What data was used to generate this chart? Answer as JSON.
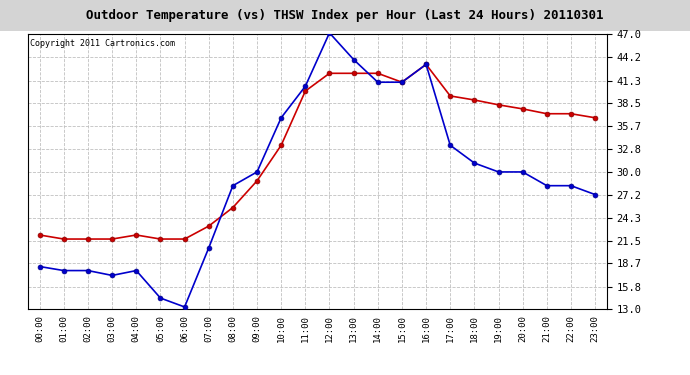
{
  "title": "Outdoor Temperature (vs) THSW Index per Hour (Last 24 Hours) 20110301",
  "copyright": "Copyright 2011 Cartronics.com",
  "hours": [
    "00:00",
    "01:00",
    "02:00",
    "03:00",
    "04:00",
    "05:00",
    "06:00",
    "07:00",
    "08:00",
    "09:00",
    "10:00",
    "11:00",
    "12:00",
    "13:00",
    "14:00",
    "15:00",
    "16:00",
    "17:00",
    "18:00",
    "19:00",
    "20:00",
    "21:00",
    "22:00",
    "23:00"
  ],
  "temp_red": [
    22.2,
    21.7,
    21.7,
    21.7,
    22.2,
    21.7,
    21.7,
    23.3,
    25.6,
    28.9,
    33.3,
    40.0,
    42.2,
    42.2,
    42.2,
    41.1,
    43.3,
    39.4,
    38.9,
    38.3,
    37.8,
    37.2,
    37.2,
    36.7
  ],
  "thsw_blue": [
    18.3,
    17.8,
    17.8,
    17.2,
    17.8,
    14.4,
    13.3,
    20.6,
    28.3,
    30.0,
    36.7,
    40.6,
    47.2,
    43.9,
    41.1,
    41.1,
    43.3,
    33.3,
    31.1,
    30.0,
    30.0,
    28.3,
    28.3,
    27.2
  ],
  "ylim_min": 13.0,
  "ylim_max": 47.0,
  "yticks": [
    13.0,
    15.8,
    18.7,
    21.5,
    24.3,
    27.2,
    30.0,
    32.8,
    35.7,
    38.5,
    41.3,
    44.2,
    47.0
  ],
  "red_color": "#cc0000",
  "blue_color": "#0000cc",
  "bg_color": "#ffffff",
  "grid_color": "#c0c0c0",
  "title_bg": "#d4d4d4",
  "plot_bg": "#ffffff"
}
